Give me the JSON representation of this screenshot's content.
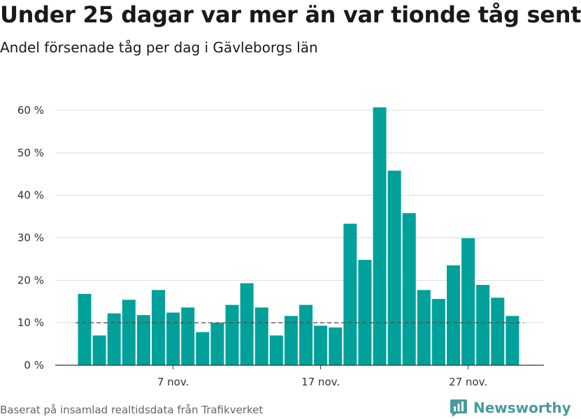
{
  "header": {
    "title": "Under 25 dagar var mer än var tionde tåg sent",
    "subtitle": "Andel försenade tåg per dag i Gävleborgs län"
  },
  "footer": {
    "source": "Baserat på insamlad realtidsdata från Trafikverket",
    "logo_text": "Newsworthy",
    "logo_icon": "bar-chart-speech-bubble-icon"
  },
  "colors": {
    "bar": "#00a19a",
    "grid": "#dddddd",
    "axis": "#333333",
    "reference_line": "#555555",
    "logo": "#4a9a9d"
  },
  "chart_data": {
    "type": "bar",
    "title": "Under 25 dagar var mer än var tionde tåg sent",
    "subtitle": "Andel försenade tåg per dag i Gävleborgs län",
    "x_unit": "day of November",
    "x": [
      1,
      2,
      3,
      4,
      5,
      6,
      7,
      8,
      9,
      10,
      11,
      12,
      13,
      14,
      15,
      16,
      17,
      18,
      19,
      20,
      21,
      22,
      23,
      24,
      25,
      26,
      27,
      28,
      29,
      30
    ],
    "values": [
      16.8,
      7.0,
      12.2,
      15.4,
      11.8,
      17.7,
      12.4,
      13.6,
      7.8,
      10.0,
      14.2,
      19.3,
      13.6,
      7.0,
      11.6,
      14.2,
      9.3,
      8.9,
      33.3,
      24.8,
      60.7,
      45.8,
      35.8,
      17.7,
      15.6,
      23.5,
      29.9,
      18.9,
      15.9,
      11.6
    ],
    "ylim": [
      0,
      60
    ],
    "yticks": [
      0,
      10,
      20,
      30,
      40,
      50,
      60
    ],
    "ytick_labels": [
      "0 %",
      "10 %",
      "20 %",
      "30 %",
      "40 %",
      "50 %",
      "60 %"
    ],
    "xtick_positions": [
      7,
      17,
      27
    ],
    "xtick_labels": [
      "7 nov.",
      "17 nov.",
      "27 nov."
    ],
    "reference_line": 10,
    "grid": "horizontal",
    "xlabel": "",
    "ylabel": ""
  }
}
